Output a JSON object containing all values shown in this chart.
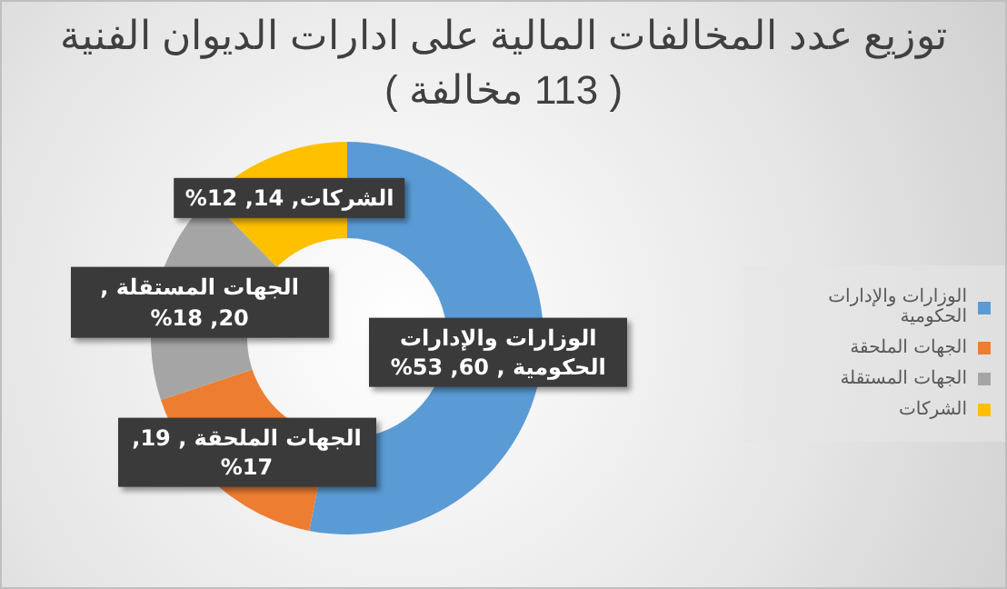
{
  "chart_data": {
    "type": "donut",
    "title": "توزيع عدد المخالفات المالية على ادارات الديوان الفنية",
    "subtitle": "( 113 مخالفة )",
    "categories": [
      "الوزارات والإدارات الحكومية",
      "الجهات الملحقة",
      "الجهات المستقلة",
      "الشركات"
    ],
    "values": [
      60,
      19,
      20,
      14
    ],
    "colors": [
      "#5b9bd5",
      "#ed7d31",
      "#a5a5a5",
      "#ffc000"
    ],
    "value_labels": [
      "الوزارات والإدارات الحكومية , 60, 53%",
      "الجهات الملحقة , 19, 17%",
      "الجهات المستقلة , 20, 18%",
      "الشركات, 14, 12%"
    ],
    "legend": "right"
  }
}
